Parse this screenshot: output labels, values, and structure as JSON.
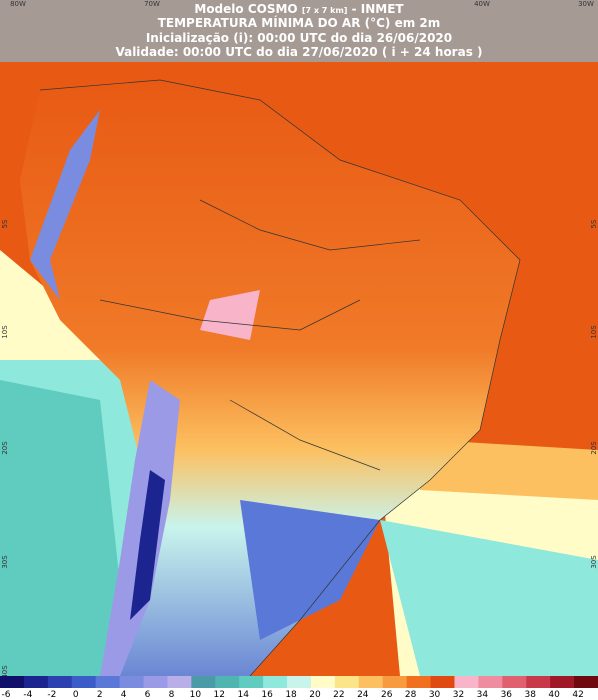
{
  "header": {
    "model": "Modelo COSMO",
    "resolution": "[7 x 7 km]",
    "source": "- INMET",
    "title": "TEMPERATURA MÍNIMA DO AR (°C) em 2m",
    "init": "Inicialização (i): 00:00 UTC do dia 26/06/2020",
    "valid": "Validade: 00:00 UTC do dia 27/06/2020 ( i + 24 horas )"
  },
  "longitude_labels": [
    "80W",
    "70W",
    "40W",
    "30W"
  ],
  "latitude_labels_left": [
    "5S",
    "10S",
    "20S",
    "30S",
    "40S"
  ],
  "latitude_labels_right": [
    "5S",
    "10S",
    "20S",
    "30S"
  ],
  "legend": {
    "labels": [
      "-6",
      "-4",
      "-2",
      "0",
      "2",
      "4",
      "6",
      "8",
      "10",
      "12",
      "14",
      "16",
      "18",
      "20",
      "22",
      "24",
      "26",
      "28",
      "30",
      "32",
      "34",
      "36",
      "38",
      "40",
      "42"
    ],
    "colors": [
      "#10106a",
      "#1c2490",
      "#2c40b0",
      "#3c5cc8",
      "#5a78d8",
      "#7a8ce0",
      "#9a9ae6",
      "#b8aee8",
      "#4a9aa8",
      "#50b4b0",
      "#60ccc0",
      "#8ee8dc",
      "#c8f4ec",
      "#fffcc8",
      "#fce488",
      "#fcc060",
      "#f89a40",
      "#f07020",
      "#e04a10",
      "#f8b4c8",
      "#f08ca0",
      "#e06070",
      "#c83848",
      "#a01828",
      "#700810"
    ]
  }
}
